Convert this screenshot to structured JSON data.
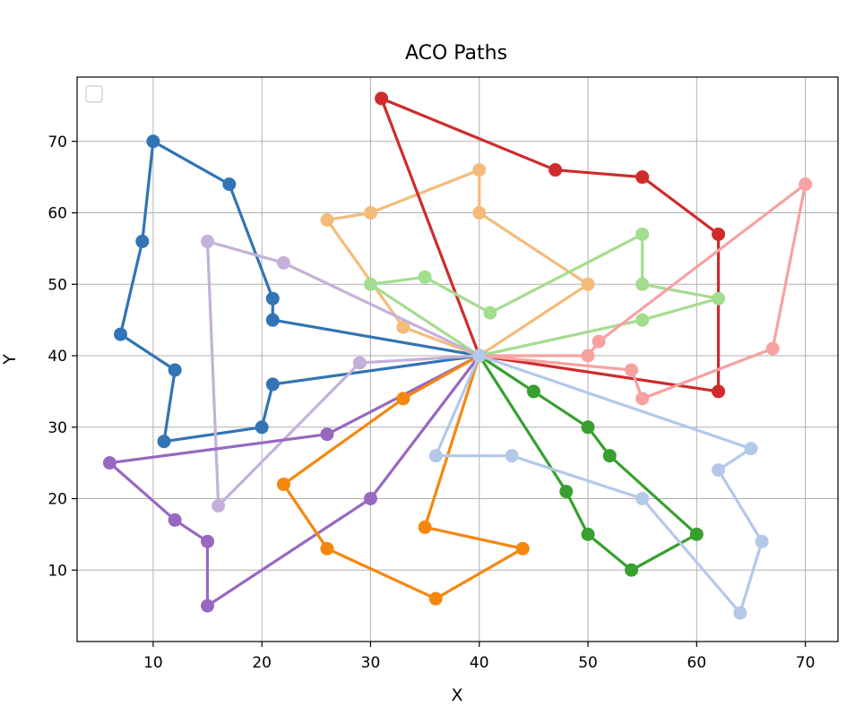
{
  "chart_data": {
    "type": "line",
    "title": "ACO Paths",
    "xlabel": "X",
    "ylabel": "Y",
    "xlim": [
      3,
      73
    ],
    "ylim": [
      0,
      79
    ],
    "xticks": [
      10,
      20,
      30,
      40,
      50,
      60,
      70
    ],
    "yticks": [
      10,
      20,
      30,
      40,
      50,
      60,
      70
    ],
    "grid": true,
    "legend": {
      "placement": "top-left",
      "entries": []
    },
    "markers": "circle",
    "series": [
      {
        "color": "#3274b5",
        "points": [
          [
            40,
            40
          ],
          [
            21,
            45
          ],
          [
            21,
            48
          ],
          [
            17,
            64
          ],
          [
            10,
            70
          ],
          [
            9,
            56
          ],
          [
            7,
            43
          ],
          [
            12,
            38
          ],
          [
            11,
            28
          ],
          [
            20,
            30
          ],
          [
            21,
            36
          ],
          [
            40,
            40
          ]
        ]
      },
      {
        "color": "#f5bb7a",
        "points": [
          [
            40,
            40
          ],
          [
            33,
            44
          ],
          [
            26,
            59
          ],
          [
            30,
            60
          ],
          [
            40,
            66
          ],
          [
            40,
            60
          ],
          [
            50,
            50
          ],
          [
            40,
            40
          ]
        ]
      },
      {
        "color": "#cf2b2b",
        "points": [
          [
            40,
            40
          ],
          [
            31,
            76
          ],
          [
            47,
            66
          ],
          [
            55,
            65
          ],
          [
            62,
            57
          ],
          [
            62,
            35
          ],
          [
            40,
            40
          ]
        ]
      },
      {
        "color": "#a3dd8f",
        "points": [
          [
            40,
            40
          ],
          [
            30,
            50
          ],
          [
            35,
            51
          ],
          [
            41,
            46
          ],
          [
            55,
            57
          ],
          [
            55,
            50
          ],
          [
            62,
            48
          ],
          [
            55,
            45
          ],
          [
            40,
            40
          ]
        ]
      },
      {
        "color": "#c4b1d9",
        "points": [
          [
            40,
            40
          ],
          [
            22,
            53
          ],
          [
            15,
            56
          ],
          [
            16,
            19
          ],
          [
            29,
            39
          ],
          [
            40,
            40
          ]
        ]
      },
      {
        "color": "#f7a1a1",
        "points": [
          [
            40,
            40
          ],
          [
            50,
            40
          ],
          [
            51,
            42
          ],
          [
            70,
            64
          ],
          [
            67,
            41
          ],
          [
            55,
            34
          ],
          [
            54,
            38
          ],
          [
            40,
            40
          ]
        ]
      },
      {
        "color": "#9868c1",
        "points": [
          [
            40,
            40
          ],
          [
            26,
            29
          ],
          [
            6,
            25
          ],
          [
            12,
            17
          ],
          [
            15,
            14
          ],
          [
            15,
            5
          ],
          [
            30,
            20
          ],
          [
            40,
            40
          ]
        ]
      },
      {
        "color": "#f5870f",
        "points": [
          [
            40,
            40
          ],
          [
            33,
            34
          ],
          [
            22,
            22
          ],
          [
            26,
            13
          ],
          [
            36,
            6
          ],
          [
            44,
            13
          ],
          [
            35,
            16
          ],
          [
            40,
            40
          ]
        ]
      },
      {
        "color": "#38a02f",
        "points": [
          [
            40,
            40
          ],
          [
            45,
            35
          ],
          [
            50,
            30
          ],
          [
            52,
            26
          ],
          [
            60,
            15
          ],
          [
            54,
            10
          ],
          [
            50,
            15
          ],
          [
            48,
            21
          ],
          [
            40,
            40
          ]
        ]
      },
      {
        "color": "#b4c8ea",
        "points": [
          [
            40,
            40
          ],
          [
            65,
            27
          ],
          [
            62,
            24
          ],
          [
            66,
            14
          ],
          [
            64,
            4
          ],
          [
            55,
            20
          ],
          [
            43,
            26
          ],
          [
            36,
            26
          ],
          [
            40,
            40
          ]
        ]
      }
    ]
  },
  "edge_strip": {
    "colors": [
      "#1f3f8f",
      "#000000",
      "#2b3fa0",
      "#c02a2a",
      "#2b3fa0",
      "#c02a7a",
      "#2b3fa0",
      "#555555",
      "#2b3fa0"
    ]
  }
}
